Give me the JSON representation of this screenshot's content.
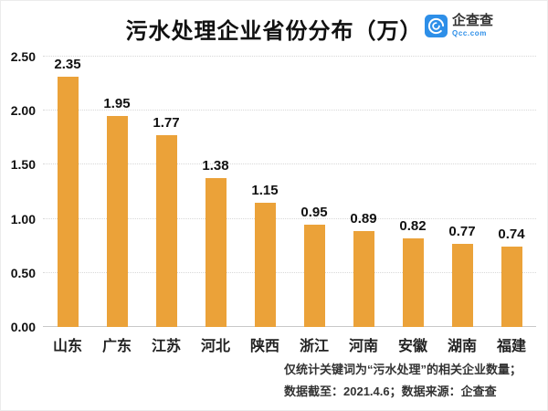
{
  "header": {
    "title": "污水处理企业省份分布（万）",
    "logo": {
      "name": "企查查",
      "domain": "Qcc.com",
      "icon": "qichacha-logo-icon",
      "blue": "#2E8FE8"
    }
  },
  "chart_data": {
    "type": "bar",
    "title": "污水处理企业省份分布（万）",
    "categories": [
      "山东",
      "广东",
      "江苏",
      "河北",
      "陕西",
      "浙江",
      "河南",
      "安徽",
      "湖南",
      "福建"
    ],
    "values": [
      2.35,
      1.95,
      1.77,
      1.38,
      1.15,
      0.95,
      0.89,
      0.82,
      0.77,
      0.74
    ],
    "value_labels": [
      "2.35",
      "1.95",
      "1.77",
      "1.38",
      "1.15",
      "0.95",
      "0.89",
      "0.82",
      "0.77",
      "0.74"
    ],
    "xlabel": "",
    "ylabel": "",
    "ylim": [
      0,
      2.5
    ],
    "ytick_step": 0.5,
    "yticks": [
      "0.00",
      "0.50",
      "1.00",
      "1.50",
      "2.00",
      "2.50"
    ],
    "grid": "horizontal-dotted",
    "legend": "none",
    "bar_color": "#EBA239"
  },
  "footer": {
    "line1": "仅统计关键词为“污水处理”的相关企业数量；",
    "line2": "数据截至：2021.4.6；数据来源：企查查"
  },
  "colors": {
    "bar": "#EBA239",
    "grid": "#D8D8D8",
    "axis_baseline": "#C9C9C9",
    "title_text": "#111111",
    "footer_text": "#333333",
    "logo_blue": "#2E8FE8"
  }
}
